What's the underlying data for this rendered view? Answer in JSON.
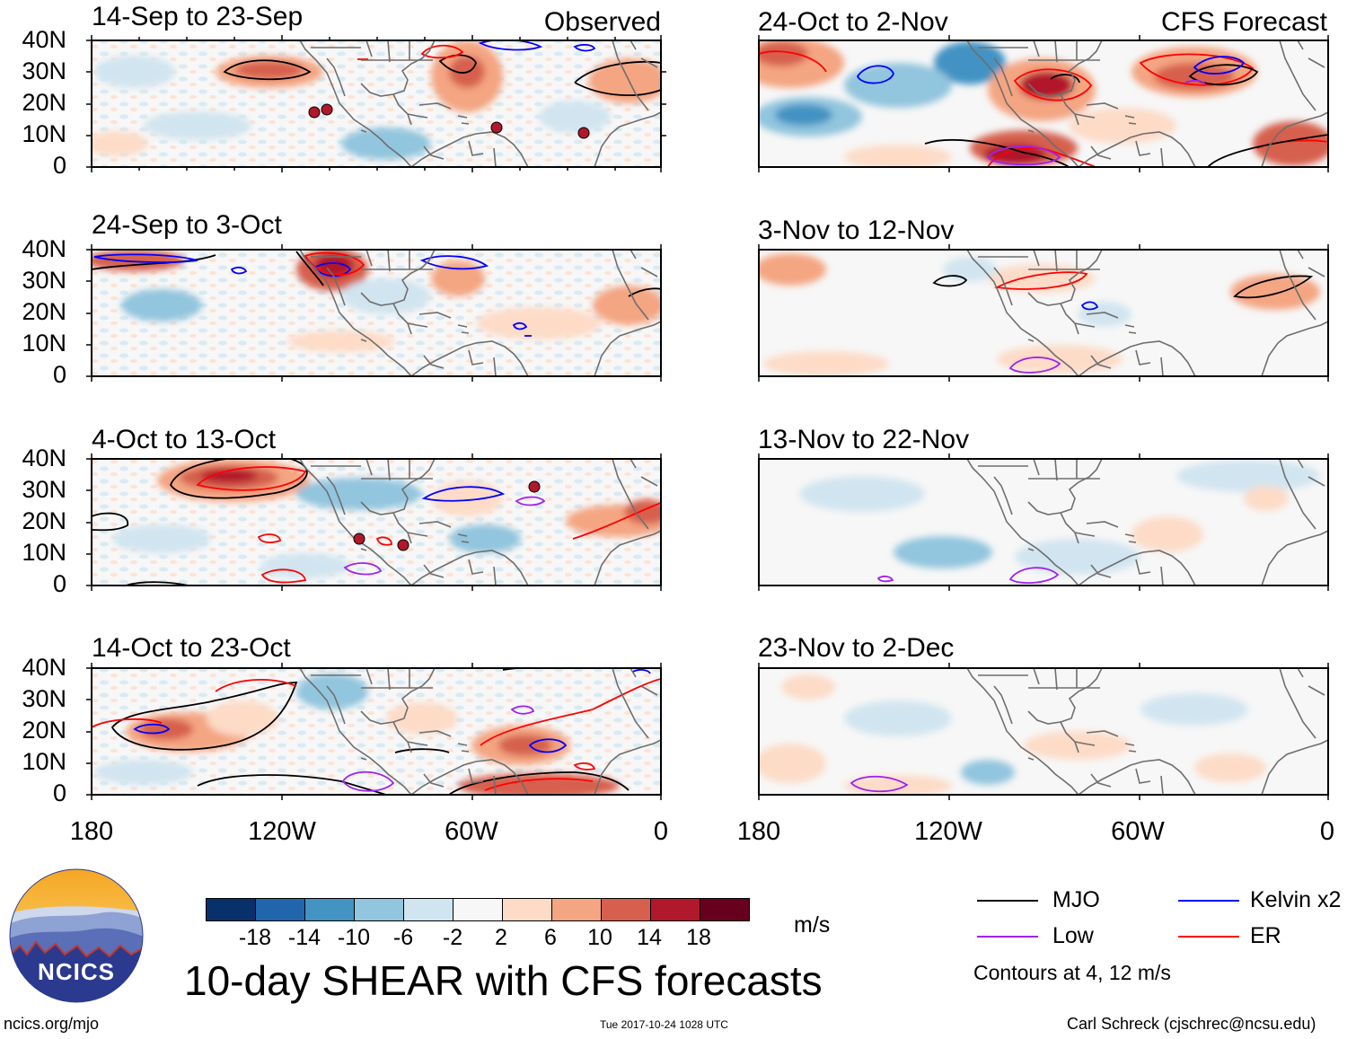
{
  "header": {
    "observed_label": "Observed",
    "forecast_label": "CFS Forecast"
  },
  "axes": {
    "lat_labels": [
      "40N",
      "30N",
      "20N",
      "10N",
      "0"
    ],
    "lon_labels": [
      "180",
      "120W",
      "60W",
      "0"
    ]
  },
  "panels": [
    {
      "title": "14-Sep to 23-Sep",
      "column": "observed"
    },
    {
      "title": "24-Sep to 3-Oct",
      "column": "observed"
    },
    {
      "title": "4-Oct to 13-Oct",
      "column": "observed"
    },
    {
      "title": "14-Oct to 23-Oct",
      "column": "observed"
    },
    {
      "title": "24-Oct to 2-Nov",
      "column": "forecast"
    },
    {
      "title": "3-Nov to 12-Nov",
      "column": "forecast"
    },
    {
      "title": "13-Nov to 22-Nov",
      "column": "forecast"
    },
    {
      "title": "23-Nov to 2-Dec",
      "column": "forecast"
    }
  ],
  "colorbar": {
    "unit": "m/s",
    "colors": [
      "#08306b",
      "#2166ac",
      "#4393c3",
      "#92c5de",
      "#d1e5f0",
      "#f7f7f7",
      "#fddbc7",
      "#f4a582",
      "#d6604d",
      "#b2182b",
      "#67001f"
    ],
    "labels": [
      "-18",
      "-14",
      "-10",
      "-6",
      "-2",
      "2",
      "6",
      "10",
      "14",
      "18"
    ]
  },
  "legend": {
    "items": [
      {
        "label": "MJO",
        "color": "#000000"
      },
      {
        "label": "Kelvin x2",
        "color": "#0000ff"
      },
      {
        "label": "Low",
        "color": "#a020f0"
      },
      {
        "label": "ER",
        "color": "#ff0000"
      }
    ],
    "note": "Contours at 4, 12 m/s"
  },
  "footer": {
    "main_title": "10-day SHEAR with CFS forecasts",
    "site": "ncics.org/mjo",
    "timestamp": "Tue 2017-10-24 1028 UTC",
    "credit": "Carl Schreck (cjschrec@ncsu.edu)",
    "logo_text": "NCICS"
  }
}
